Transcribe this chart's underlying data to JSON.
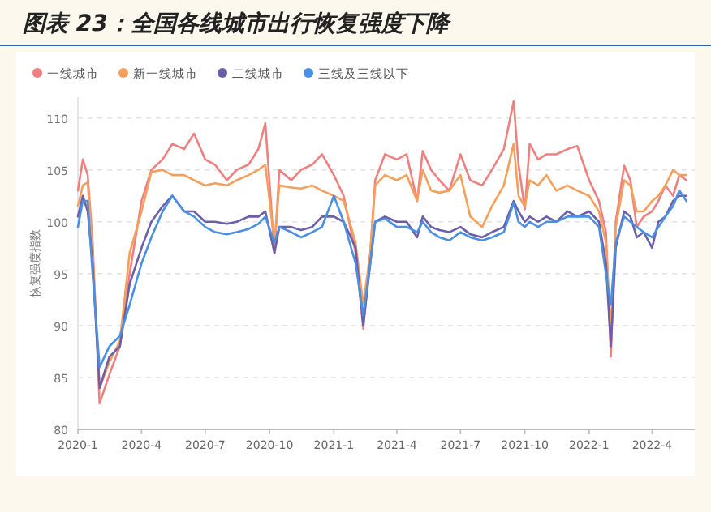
{
  "chart_data": {
    "type": "line",
    "title": "图表 23：全国各线城市出行恢复强度下降",
    "ylabel": "恢复强度指数",
    "x": [
      "2020-01-01",
      "2020-01-08",
      "2020-01-15",
      "2020-01-22",
      "2020-02-01",
      "2020-02-15",
      "2020-03-01",
      "2020-03-15",
      "2020-04-01",
      "2020-04-15",
      "2020-05-01",
      "2020-05-15",
      "2020-06-01",
      "2020-06-15",
      "2020-07-01",
      "2020-07-15",
      "2020-08-01",
      "2020-08-15",
      "2020-09-01",
      "2020-09-15",
      "2020-09-25",
      "2020-10-08",
      "2020-10-15",
      "2020-11-01",
      "2020-11-15",
      "2020-12-01",
      "2020-12-15",
      "2021-01-01",
      "2021-01-15",
      "2021-02-01",
      "2021-02-12",
      "2021-02-22",
      "2021-03-01",
      "2021-03-15",
      "2021-04-01",
      "2021-04-15",
      "2021-04-30",
      "2021-05-08",
      "2021-05-20",
      "2021-06-01",
      "2021-06-15",
      "2021-07-01",
      "2021-07-15",
      "2021-08-01",
      "2021-08-15",
      "2021-09-01",
      "2021-09-15",
      "2021-09-22",
      "2021-10-01",
      "2021-10-08",
      "2021-10-20",
      "2021-11-01",
      "2021-11-15",
      "2021-12-01",
      "2021-12-15",
      "2022-01-01",
      "2022-01-15",
      "2022-01-25",
      "2022-02-01",
      "2022-02-08",
      "2022-02-20",
      "2022-03-01",
      "2022-03-10",
      "2022-03-20",
      "2022-04-01",
      "2022-04-10",
      "2022-04-20",
      "2022-05-01",
      "2022-05-10",
      "2022-05-20"
    ],
    "series": [
      {
        "name": "一线城市",
        "color": "#ef8080",
        "values": [
          103,
          106,
          104.5,
          98,
          82.5,
          85.3,
          88,
          95,
          102,
          105,
          106,
          107.5,
          107,
          108.5,
          106,
          105.5,
          104,
          105,
          105.5,
          107,
          109.5,
          97,
          105,
          104,
          105,
          105.5,
          106.5,
          104.5,
          102.5,
          97,
          89.7,
          97,
          104,
          106.5,
          106,
          106.5,
          102,
          106.8,
          105,
          104,
          103,
          106.5,
          104,
          103.5,
          105,
          107,
          111.6,
          105.5,
          101.2,
          107.5,
          106,
          106.5,
          106.5,
          107,
          107.3,
          104,
          102,
          99,
          87,
          100,
          105.4,
          104,
          99.5,
          100.5,
          101,
          102,
          103.5,
          102.5,
          104.5,
          104
        ]
      },
      {
        "name": "新一线城市",
        "color": "#f5a05a",
        "values": [
          101.5,
          103.5,
          103.8,
          97,
          84,
          86.5,
          88.5,
          97,
          101,
          104.8,
          105,
          104.5,
          104.5,
          104,
          103.5,
          103.7,
          103.5,
          104,
          104.5,
          105,
          105.5,
          98,
          103.5,
          103.3,
          103.2,
          103.5,
          103,
          102.5,
          102,
          98,
          92,
          97,
          103.5,
          104.5,
          104,
          104.5,
          102,
          105,
          103,
          102.8,
          103,
          104.5,
          100.5,
          99.5,
          101.5,
          103.5,
          107.5,
          102.5,
          101.5,
          104,
          103.5,
          104.5,
          103,
          103.5,
          103,
          102.5,
          101,
          98,
          89.5,
          99.5,
          104,
          103.5,
          101,
          101,
          102,
          102.5,
          103.5,
          105,
          104.5,
          104.5
        ]
      },
      {
        "name": "二线城市",
        "color": "#6a5fa8",
        "values": [
          100.5,
          102.5,
          101,
          96,
          84,
          87,
          88,
          94,
          97.5,
          100,
          101.5,
          102.5,
          101,
          101,
          100,
          100,
          99.8,
          100,
          100.5,
          100.5,
          101,
          97,
          99.5,
          99.5,
          99.2,
          99.5,
          100.5,
          100.5,
          100,
          97.5,
          90,
          96,
          100,
          100.5,
          100,
          100,
          98.5,
          100.5,
          99.5,
          99.2,
          99,
          99.5,
          98.8,
          98.5,
          99,
          99.5,
          102,
          101,
          100,
          100.5,
          100,
          100.5,
          100,
          101,
          100.5,
          101,
          100,
          96,
          88,
          97.5,
          101,
          100.5,
          98.5,
          99,
          97.5,
          100,
          100.5,
          102,
          102.5,
          102.5
        ]
      },
      {
        "name": "三线及三线以下",
        "color": "#4a90e2",
        "values": [
          99.5,
          102,
          102,
          95,
          86,
          88,
          89,
          92,
          96,
          98.5,
          101,
          102.5,
          101,
          100.5,
          99.5,
          99,
          98.8,
          99,
          99.3,
          99.8,
          100.5,
          98,
          99.5,
          99,
          98.5,
          99,
          99.5,
          102.5,
          100,
          96,
          91,
          96,
          100,
          100.3,
          99.5,
          99.5,
          99,
          100,
          99,
          98.5,
          98.2,
          99,
          98.5,
          98.2,
          98.5,
          99,
          101.8,
          100,
          99.5,
          100,
          99.5,
          100,
          100,
          100.5,
          100.5,
          100.5,
          99.5,
          95,
          92,
          98,
          100.5,
          100,
          99.5,
          99,
          98.5,
          99.5,
          100.5,
          101.5,
          103,
          102
        ]
      }
    ],
    "xlim": [
      "2020-01-01",
      "2022-06-01"
    ],
    "xticks": [
      {
        "value": "2020-01-01",
        "label": "2020-1"
      },
      {
        "value": "2020-04-01",
        "label": "2020-4"
      },
      {
        "value": "2020-07-01",
        "label": "2020-7"
      },
      {
        "value": "2020-10-01",
        "label": "2020-10"
      },
      {
        "value": "2021-01-01",
        "label": "2021-1"
      },
      {
        "value": "2021-04-01",
        "label": "2021-4"
      },
      {
        "value": "2021-07-01",
        "label": "2021-7"
      },
      {
        "value": "2021-10-01",
        "label": "2021-10"
      },
      {
        "value": "2022-01-01",
        "label": "2022-1"
      },
      {
        "value": "2022-04-01",
        "label": "2022-4"
      }
    ],
    "ylim": [
      80,
      112
    ],
    "yticks": [
      80,
      85,
      90,
      95,
      100,
      105,
      110
    ],
    "grid": "y",
    "legend": "top left",
    "line_style": "solid"
  }
}
